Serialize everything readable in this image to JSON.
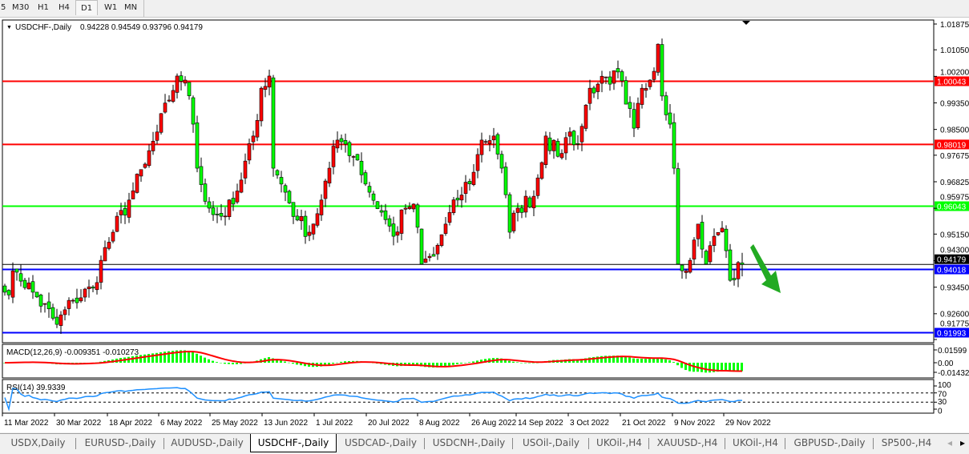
{
  "toolbar": {
    "timeframes": [
      {
        "label": "5",
        "selected": false
      },
      {
        "label": "M30",
        "selected": false
      },
      {
        "label": "H1",
        "selected": false
      },
      {
        "label": "H4",
        "selected": false
      },
      {
        "label": "D1",
        "selected": true
      },
      {
        "label": "W1",
        "selected": false
      },
      {
        "label": "MN",
        "selected": false
      }
    ]
  },
  "chart": {
    "header": "USDCHF-,Daily",
    "ohlc": "0.94228 0.94549 0.93796 0.94179",
    "last_price": "0.94179",
    "price_ticks": [
      "1.01875",
      "1.01050",
      "1.00200",
      "0.99350",
      "0.98500",
      "0.97675",
      "0.96825",
      "0.95975",
      "0.95150",
      "0.94300",
      "0.93450",
      "0.92600",
      "0.91775"
    ],
    "levels": [
      {
        "price": 1.00043,
        "label": "1.00043",
        "color": "#ff0000"
      },
      {
        "price": 0.98019,
        "label": "0.98019",
        "color": "#ff0000"
      },
      {
        "price": 0.96043,
        "label": "0.96043",
        "color": "#00ff00"
      },
      {
        "price": 0.94018,
        "label": "0.94018",
        "color": "#0000ff"
      },
      {
        "price": 0.91993,
        "label": "0.91993",
        "color": "#0000ff"
      }
    ],
    "bull_color": "#ff0000",
    "bear_color": "#00ff00",
    "arrow_color": "#22aa22",
    "close_path": [
      [
        0,
        0.9329
      ],
      [
        3,
        0.9393
      ],
      [
        7,
        0.9329
      ],
      [
        13,
        0.9226
      ],
      [
        17,
        0.9303
      ],
      [
        22,
        0.9342
      ],
      [
        24,
        0.9431
      ],
      [
        27,
        0.9521
      ],
      [
        31,
        0.9624
      ],
      [
        35,
        0.9739
      ],
      [
        38,
        0.9842
      ],
      [
        41,
        0.9944
      ],
      [
        43,
        1.0021
      ],
      [
        45,
        1.0008
      ],
      [
        47,
        0.9867
      ],
      [
        48,
        0.9726
      ],
      [
        51,
        0.9598
      ],
      [
        54,
        0.9572
      ],
      [
        57,
        0.9611
      ],
      [
        59,
        0.9688
      ],
      [
        62,
        0.9829
      ],
      [
        64,
        0.9982
      ],
      [
        66,
        1.0021
      ],
      [
        67,
        0.9726
      ],
      [
        70,
        0.9649
      ],
      [
        73,
        0.956
      ],
      [
        76,
        0.9521
      ],
      [
        79,
        0.9624
      ],
      [
        81,
        0.9726
      ],
      [
        83,
        0.9816
      ],
      [
        85,
        0.9803
      ],
      [
        88,
        0.9752
      ],
      [
        91,
        0.9649
      ],
      [
        94,
        0.9585
      ],
      [
        97,
        0.9508
      ],
      [
        100,
        0.9598
      ],
      [
        102,
        0.9611
      ],
      [
        104,
        0.9419
      ],
      [
        107,
        0.9444
      ],
      [
        110,
        0.9547
      ],
      [
        113,
        0.9624
      ],
      [
        117,
        0.9713
      ],
      [
        119,
        0.9816
      ],
      [
        122,
        0.9829
      ],
      [
        124,
        0.9726
      ],
      [
        126,
        0.9521
      ],
      [
        128,
        0.9598
      ],
      [
        132,
        0.9636
      ],
      [
        135,
        0.9829
      ],
      [
        138,
        0.9764
      ],
      [
        141,
        0.9842
      ],
      [
        143,
        0.9803
      ],
      [
        146,
        0.9982
      ],
      [
        148,
        0.9995
      ],
      [
        151,
        0.9995
      ],
      [
        153,
        1.0034
      ],
      [
        155,
        0.9931
      ],
      [
        157,
        0.9854
      ],
      [
        159,
        0.9982
      ],
      [
        161,
        1.0008
      ],
      [
        163,
        1.0123
      ],
      [
        164,
        0.9957
      ],
      [
        166,
        0.9867
      ],
      [
        167,
        0.9726
      ],
      [
        168,
        0.9419
      ],
      [
        171,
        0.9431
      ],
      [
        173,
        0.9547
      ],
      [
        175,
        0.9419
      ],
      [
        177,
        0.9508
      ],
      [
        179,
        0.9534
      ],
      [
        181,
        0.9367
      ],
      [
        184,
        0.9418
      ]
    ],
    "dates": [
      "11 Mar 2022",
      "30 Mar 2022",
      "18 Apr 2022",
      "6 May 2022",
      "25 May 2022",
      "13 Jun 2022",
      "1 Jul 2022",
      "20 Jul 2022",
      "8 Aug 2022",
      "26 Aug 2022",
      "14 Sep 2022",
      "3 Oct 2022",
      "21 Oct 2022",
      "9 Nov 2022",
      "29 Nov 2022"
    ]
  },
  "macd": {
    "label": "MACD(12,26,9) -0.009351 -0.010273",
    "ticks": [
      "0.01599",
      "0.00",
      "-0.014321"
    ],
    "hist_color": "#00ff00",
    "signal_color": "#ff0000"
  },
  "rsi": {
    "label": "RSI(14) 39.9339",
    "ticks": [
      "100",
      "70",
      "30",
      "0"
    ],
    "line_color": "#1e90ff"
  },
  "tabs": [
    {
      "label": "USDX,Daily",
      "active": false
    },
    {
      "label": "EURUSD-,Daily",
      "active": false
    },
    {
      "label": "AUDUSD-,Daily",
      "active": false
    },
    {
      "label": "USDCHF-,Daily",
      "active": true
    },
    {
      "label": "USDCAD-,Daily",
      "active": false
    },
    {
      "label": "USDCNH-,Daily",
      "active": false
    },
    {
      "label": "USOil-,Daily",
      "active": false
    },
    {
      "label": "UKOil-,H4",
      "active": false
    },
    {
      "label": "XAUUSD-,H4",
      "active": false
    },
    {
      "label": "UKOil-,H4",
      "active": false
    },
    {
      "label": "GBPUSD-,Daily",
      "active": false
    },
    {
      "label": "SP500-,H4",
      "active": false
    }
  ]
}
